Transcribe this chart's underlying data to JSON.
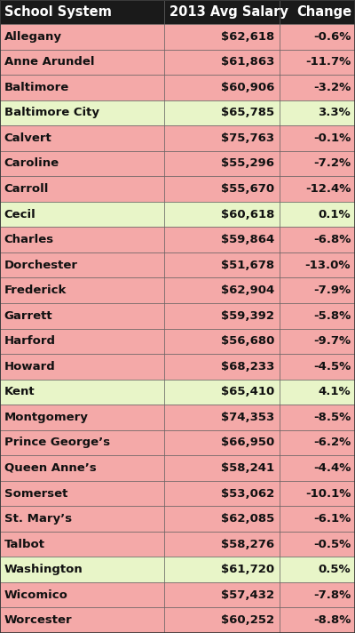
{
  "headers": [
    "School System",
    "2013 Avg Salary",
    "Change"
  ],
  "rows": [
    [
      "Allegany",
      "$62,618",
      "-0.6%"
    ],
    [
      "Anne Arundel",
      "$61,863",
      "-11.7%"
    ],
    [
      "Baltimore",
      "$60,906",
      "-3.2%"
    ],
    [
      "Baltimore City",
      "$65,785",
      "3.3%"
    ],
    [
      "Calvert",
      "$75,763",
      "-0.1%"
    ],
    [
      "Caroline",
      "$55,296",
      "-7.2%"
    ],
    [
      "Carroll",
      "$55,670",
      "-12.4%"
    ],
    [
      "Cecil",
      "$60,618",
      "0.1%"
    ],
    [
      "Charles",
      "$59,864",
      "-6.8%"
    ],
    [
      "Dorchester",
      "$51,678",
      "-13.0%"
    ],
    [
      "Frederick",
      "$62,904",
      "-7.9%"
    ],
    [
      "Garrett",
      "$59,392",
      "-5.8%"
    ],
    [
      "Harford",
      "$56,680",
      "-9.7%"
    ],
    [
      "Howard",
      "$68,233",
      "-4.5%"
    ],
    [
      "Kent",
      "$65,410",
      "4.1%"
    ],
    [
      "Montgomery",
      "$74,353",
      "-8.5%"
    ],
    [
      "Prince George’s",
      "$66,950",
      "-6.2%"
    ],
    [
      "Queen Anne’s",
      "$58,241",
      "-4.4%"
    ],
    [
      "Somerset",
      "$53,062",
      "-10.1%"
    ],
    [
      "St. Mary’s",
      "$62,085",
      "-6.1%"
    ],
    [
      "Talbot",
      "$58,276",
      "-0.5%"
    ],
    [
      "Washington",
      "$61,720",
      "0.5%"
    ],
    [
      "Wicomico",
      "$57,432",
      "-7.8%"
    ],
    [
      "Worcester",
      "$60,252",
      "-8.8%"
    ]
  ],
  "positive_rows": [
    3,
    7,
    14,
    21
  ],
  "header_bg": "#1a1a1a",
  "header_text": "#ffffff",
  "row_bg_pink": "#f4a9a8",
  "row_bg_green": "#e8f5c8",
  "border_color": "#555555",
  "text_color_dark": "#111111",
  "font_size": 9.5,
  "header_font_size": 10.5,
  "fig_width": 4.0,
  "fig_height": 7.12,
  "dpi": 100
}
